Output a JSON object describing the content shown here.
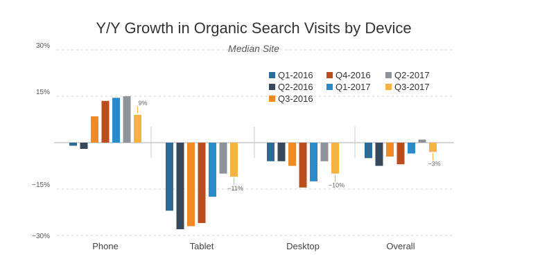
{
  "chart_data": {
    "type": "bar",
    "title": "Y/Y Growth in Organic Search Visits by Device",
    "subtitle": "Median Site",
    "categories": [
      "Phone",
      "Tablet",
      "Desktop",
      "Overall"
    ],
    "yticks": [
      "30%",
      "15%",
      "",
      "−15%",
      "−30%"
    ],
    "ylim": [
      -30,
      30
    ],
    "grid": true,
    "legend_position": "top-right",
    "series": [
      {
        "name": "Q1-2016",
        "color": "#2e6a96",
        "values": [
          -1,
          -22,
          -6,
          -5
        ]
      },
      {
        "name": "Q2-2016",
        "color": "#36485a",
        "values": [
          -2,
          -28,
          -6,
          -7.5
        ]
      },
      {
        "name": "Q3-2016",
        "color": "#f08a24",
        "values": [
          8.5,
          -27,
          -7.5,
          -4.5
        ]
      },
      {
        "name": "Q4-2016",
        "color": "#b94d1c",
        "values": [
          13.5,
          -26,
          -14.5,
          -7
        ]
      },
      {
        "name": "Q1-2017",
        "color": "#2a8bc8",
        "values": [
          14.5,
          -17.5,
          -12.5,
          -3.5
        ]
      },
      {
        "name": "Q2-2017",
        "color": "#8e9399",
        "values": [
          15,
          -10,
          -6,
          1
        ]
      },
      {
        "name": "Q3-2017",
        "color": "#f5b343",
        "values": [
          9,
          -11,
          -10,
          -3
        ]
      }
    ],
    "annotations": [
      "9%",
      "−11%",
      "−10%",
      "−3%"
    ]
  }
}
